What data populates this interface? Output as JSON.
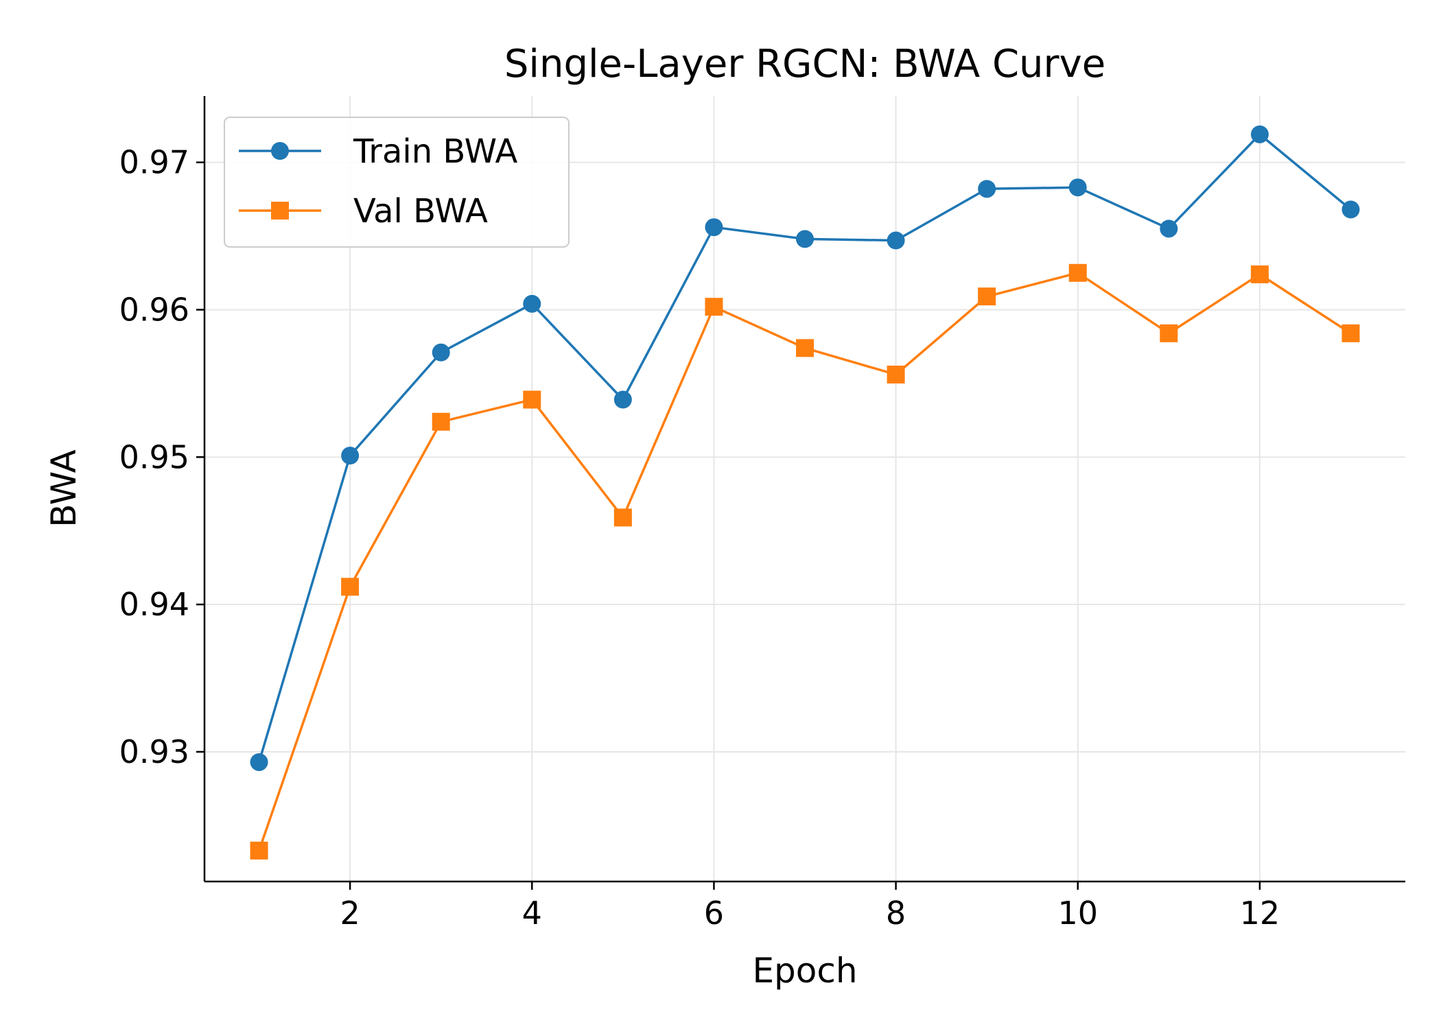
{
  "chart_data": {
    "type": "line",
    "title": "Single-Layer RGCN: BWA Curve",
    "xlabel": "Epoch",
    "ylabel": "BWA",
    "x": [
      1,
      2,
      3,
      4,
      5,
      6,
      7,
      8,
      9,
      10,
      11,
      12,
      13
    ],
    "xlim": [
      0.4,
      13.6
    ],
    "ylim": [
      0.9212,
      0.9745
    ],
    "xticks": [
      2,
      4,
      6,
      8,
      10,
      12
    ],
    "xtick_labels": [
      "2",
      "4",
      "6",
      "8",
      "10",
      "12"
    ],
    "yticks": [
      0.93,
      0.94,
      0.95,
      0.96,
      0.97
    ],
    "ytick_labels": [
      "0.93",
      "0.94",
      "0.95",
      "0.96",
      "0.97"
    ],
    "grid": true,
    "legend_position": "top-left",
    "series": [
      {
        "name": "Train BWA",
        "color": "#1f77b4",
        "marker": "circle",
        "values": [
          0.9293,
          0.9501,
          0.9571,
          0.9604,
          0.9539,
          0.9656,
          0.9648,
          0.9647,
          0.9682,
          0.9683,
          0.9655,
          0.9719,
          0.9668
        ]
      },
      {
        "name": "Val BWA",
        "color": "#ff7f0e",
        "marker": "square",
        "values": [
          0.9233,
          0.9412,
          0.9524,
          0.9539,
          0.9459,
          0.9602,
          0.9574,
          0.9556,
          0.9609,
          0.9625,
          0.9584,
          0.9624,
          0.9584
        ]
      }
    ]
  }
}
